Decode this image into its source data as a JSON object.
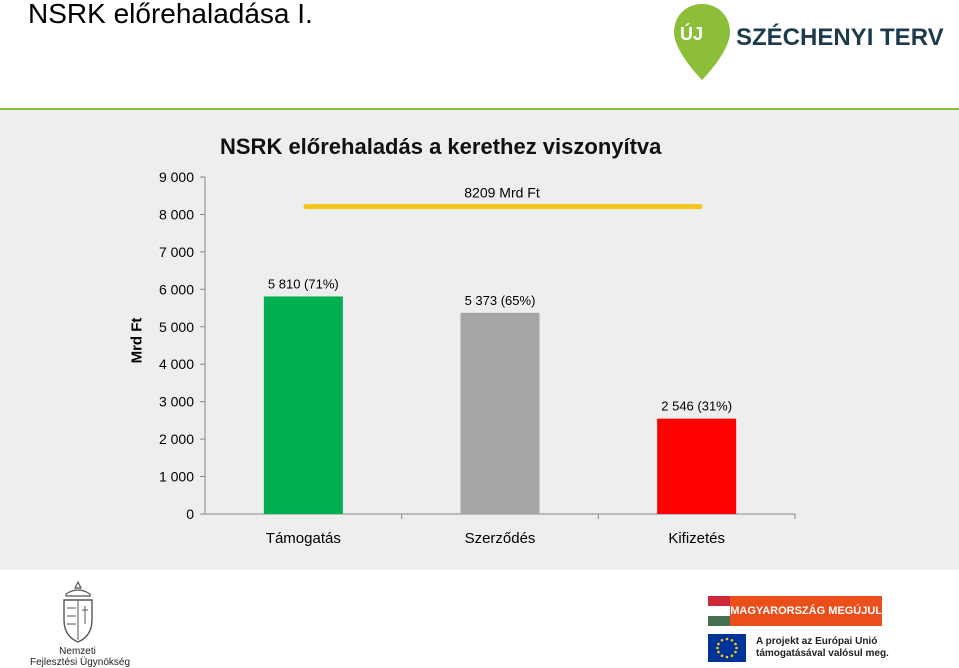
{
  "slide": {
    "title": "NSRK előrehaladása I."
  },
  "logos": {
    "szechenyi_pin_text": "ÚJ",
    "szechenyi_brand": "SZÉCHENYI TERV",
    "nfu_line1": "Nemzeti",
    "nfu_line2": "Fejlesztési Ügynökség",
    "banner_text": "MAGYARORSZÁG MEGÚJUL",
    "eu_line1": "A projekt az Európai Unió",
    "eu_line2": "támogatásával valósul meg."
  },
  "colors": {
    "panel_bg": "#eeeeee",
    "title_rule": "#8cbe3a",
    "reference_line": "#f5c518",
    "szechenyi_green": "#8cbe3a"
  },
  "chart_data": {
    "type": "bar",
    "title": "NSRK előrehaladás a kerethez viszonyítva",
    "ylabel": "Mrd Ft",
    "xlabel": "",
    "ylim": [
      0,
      9000
    ],
    "yticks": [
      0,
      1000,
      2000,
      3000,
      4000,
      5000,
      6000,
      7000,
      8000,
      9000
    ],
    "ytick_labels": [
      "0",
      "1 000",
      "2 000",
      "3 000",
      "4 000",
      "5 000",
      "6 000",
      "7 000",
      "8 000",
      "9 000"
    ],
    "grid": false,
    "categories": [
      "Támogatás",
      "Szerződés",
      "Kifizetés"
    ],
    "values": [
      5810,
      5373,
      2546
    ],
    "value_labels": [
      "5 810 (71%)",
      "5 373 (65%)",
      "2 546 (31%)"
    ],
    "bar_colors": [
      "#00b050",
      "#a6a6a6",
      "#ff0000"
    ],
    "reference_line": {
      "value": 8209,
      "label": "8209 Mrd Ft"
    }
  }
}
